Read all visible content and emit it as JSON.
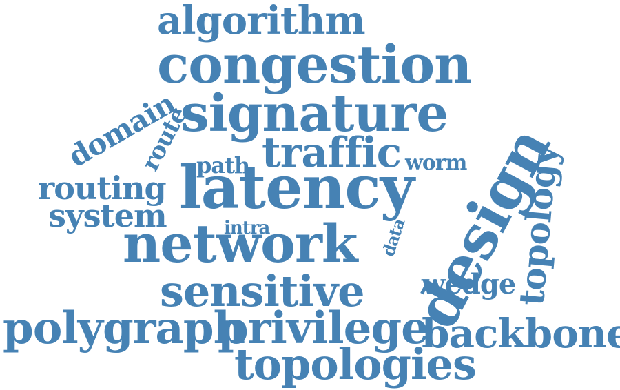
{
  "color": "#4682b4",
  "words": [
    {
      "key": "algorithm",
      "text": "algorithm"
    },
    {
      "key": "congestion",
      "text": "congestion"
    },
    {
      "key": "signature",
      "text": "signature"
    },
    {
      "key": "domain",
      "text": "domain"
    },
    {
      "key": "route",
      "text": "route"
    },
    {
      "key": "traffic",
      "text": "traffic"
    },
    {
      "key": "path",
      "text": "path"
    },
    {
      "key": "worm",
      "text": "worm"
    },
    {
      "key": "latency",
      "text": "latency"
    },
    {
      "key": "design",
      "text": "design"
    },
    {
      "key": "topology",
      "text": "topology"
    },
    {
      "key": "routing",
      "text": "routing"
    },
    {
      "key": "system",
      "text": "system"
    },
    {
      "key": "intra",
      "text": "intra"
    },
    {
      "key": "data",
      "text": "data"
    },
    {
      "key": "network",
      "text": "network"
    },
    {
      "key": "sensitive",
      "text": "sensitive"
    },
    {
      "key": "wedge",
      "text": "wedge"
    },
    {
      "key": "polygraph",
      "text": "polygraph"
    },
    {
      "key": "privilege",
      "text": "privilege"
    },
    {
      "key": "backbone",
      "text": "backbone"
    },
    {
      "key": "topologies",
      "text": "topologies"
    }
  ]
}
